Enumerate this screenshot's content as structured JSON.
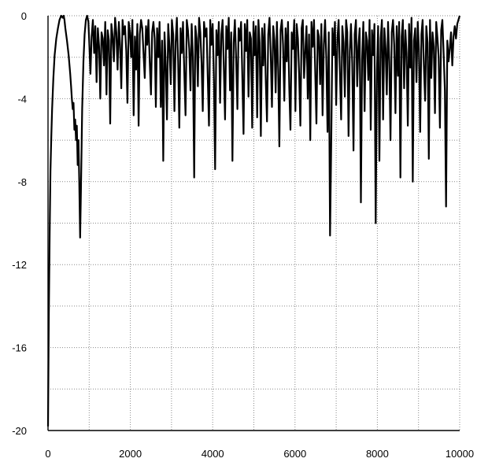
{
  "chart_data": {
    "type": "line",
    "title": "",
    "xlabel": "",
    "ylabel": "",
    "xlim": [
      0,
      10000
    ],
    "ylim": [
      -20,
      0
    ],
    "grid": true,
    "x_minor_step": 1000,
    "y_minor_step": 2,
    "x_ticks": [
      {
        "value": 0,
        "label": "0"
      },
      {
        "value": 2000,
        "label": "2000"
      },
      {
        "value": 4000,
        "label": "4000"
      },
      {
        "value": 6000,
        "label": "6000"
      },
      {
        "value": 8000,
        "label": "8000"
      },
      {
        "value": 10000,
        "label": "10000"
      }
    ],
    "y_ticks": [
      {
        "value": 0,
        "label": "0"
      },
      {
        "value": -4,
        "label": "-4"
      },
      {
        "value": -8,
        "label": "-8"
      },
      {
        "value": -12,
        "label": "-12"
      },
      {
        "value": -16,
        "label": "-16"
      },
      {
        "value": -20,
        "label": "-20"
      }
    ],
    "series": [
      {
        "color": "#000000",
        "x": [
          0,
          20,
          40,
          60,
          80,
          100,
          130,
          160,
          200,
          240,
          280,
          320,
          360,
          380,
          400,
          420,
          460,
          500,
          540,
          560,
          580,
          600,
          620,
          640,
          660,
          680,
          700,
          720,
          740,
          760,
          780,
          800,
          830,
          860,
          890,
          920,
          950,
          980,
          1000,
          1030,
          1060,
          1090,
          1120,
          1150,
          1180,
          1210,
          1240,
          1270,
          1300,
          1330,
          1360,
          1390,
          1420,
          1450,
          1480,
          1510,
          1540,
          1570,
          1600,
          1630,
          1660,
          1690,
          1720,
          1750,
          1780,
          1810,
          1840,
          1870,
          1900,
          1930,
          1960,
          1990,
          2020,
          2050,
          2080,
          2110,
          2140,
          2170,
          2200,
          2230,
          2260,
          2290,
          2320,
          2350,
          2380,
          2410,
          2440,
          2470,
          2500,
          2530,
          2560,
          2590,
          2620,
          2650,
          2680,
          2710,
          2740,
          2770,
          2800,
          2830,
          2860,
          2890,
          2920,
          2950,
          2980,
          3010,
          3040,
          3070,
          3100,
          3130,
          3160,
          3190,
          3220,
          3250,
          3280,
          3310,
          3340,
          3370,
          3400,
          3430,
          3460,
          3490,
          3520,
          3550,
          3580,
          3610,
          3640,
          3670,
          3700,
          3730,
          3760,
          3790,
          3820,
          3850,
          3880,
          3910,
          3940,
          3970,
          4000,
          4030,
          4060,
          4090,
          4120,
          4150,
          4180,
          4210,
          4240,
          4270,
          4300,
          4330,
          4360,
          4390,
          4420,
          4450,
          4480,
          4510,
          4540,
          4570,
          4600,
          4630,
          4660,
          4690,
          4720,
          4750,
          4780,
          4810,
          4840,
          4870,
          4900,
          4930,
          4960,
          4990,
          5020,
          5050,
          5080,
          5110,
          5140,
          5170,
          5200,
          5230,
          5260,
          5290,
          5320,
          5350,
          5380,
          5410,
          5440,
          5470,
          5500,
          5530,
          5560,
          5590,
          5620,
          5650,
          5680,
          5710,
          5740,
          5770,
          5800,
          5830,
          5860,
          5890,
          5920,
          5950,
          5980,
          6010,
          6040,
          6070,
          6100,
          6130,
          6160,
          6190,
          6220,
          6250,
          6280,
          6310,
          6340,
          6370,
          6400,
          6430,
          6460,
          6490,
          6520,
          6550,
          6580,
          6610,
          6640,
          6670,
          6700,
          6730,
          6760,
          6790,
          6820,
          6850,
          6880,
          6910,
          6940,
          6970,
          7000,
          7030,
          7060,
          7090,
          7120,
          7150,
          7180,
          7210,
          7240,
          7270,
          7300,
          7330,
          7360,
          7390,
          7420,
          7450,
          7480,
          7510,
          7540,
          7570,
          7600,
          7630,
          7660,
          7690,
          7720,
          7750,
          7780,
          7810,
          7840,
          7870,
          7900,
          7930,
          7960,
          7990,
          8020,
          8050,
          8080,
          8110,
          8140,
          8170,
          8200,
          8230,
          8260,
          8290,
          8320,
          8350,
          8380,
          8410,
          8440,
          8470,
          8500,
          8530,
          8560,
          8590,
          8620,
          8650,
          8680,
          8710,
          8740,
          8770,
          8800,
          8830,
          8860,
          8890,
          8920,
          8950,
          8980,
          9010,
          9040,
          9070,
          9100,
          9130,
          9160,
          9190,
          9220,
          9250,
          9280,
          9310,
          9340,
          9370,
          9400,
          9430,
          9460,
          9490,
          9520,
          9550,
          9580,
          9610,
          9640,
          9670,
          9700,
          9730,
          9760,
          9790,
          9820,
          9850,
          9880,
          9910,
          9940,
          9970,
          10000
        ],
        "y": [
          -19.8,
          -14.5,
          -10.5,
          -7.5,
          -5.8,
          -4.5,
          -3.0,
          -1.9,
          -1.1,
          -0.6,
          -0.2,
          0.0,
          -0.1,
          0.0,
          -0.2,
          -0.6,
          -1.2,
          -1.9,
          -2.8,
          -3.4,
          -4.0,
          -4.5,
          -4.2,
          -5.5,
          -5.0,
          -6.0,
          -5.3,
          -7.2,
          -6.0,
          -8.0,
          -10.7,
          -8.5,
          -4.5,
          -2.2,
          -0.9,
          -0.2,
          0.0,
          -0.3,
          -1.2,
          -2.8,
          -1.0,
          -0.2,
          -1.8,
          -0.5,
          -3.2,
          -0.6,
          -1.5,
          -4.0,
          -0.8,
          -1.1,
          -2.4,
          -0.3,
          -3.8,
          -0.7,
          -1.2,
          -5.2,
          -0.4,
          -1.0,
          -2.2,
          -0.1,
          -0.8,
          -2.6,
          -0.3,
          -1.4,
          -3.5,
          -0.2,
          -0.9,
          -0.5,
          -1.7,
          -4.2,
          -0.3,
          -0.8,
          -2.0,
          -0.2,
          -4.8,
          -1.0,
          -2.6,
          -0.4,
          -5.3,
          -0.9,
          -0.2,
          -0.6,
          -1.8,
          -3.0,
          -0.5,
          -1.4,
          -0.2,
          -2.2,
          -3.8,
          -0.8,
          -0.3,
          -1.1,
          -4.4,
          -0.6,
          -2.0,
          -0.3,
          -4.4,
          -1.2,
          -7.0,
          -0.8,
          -2.4,
          -5.0,
          -0.4,
          -1.5,
          -3.3,
          -0.2,
          -0.9,
          -4.6,
          -1.3,
          -0.1,
          -2.2,
          -5.4,
          -0.6,
          -1.8,
          -0.3,
          -2.7,
          -4.8,
          -0.2,
          -0.7,
          -1.6,
          -3.6,
          -0.4,
          -2.0,
          -7.8,
          -0.5,
          -1.1,
          -3.4,
          -0.1,
          -0.8,
          -2.3,
          -4.6,
          -0.3,
          -1.0,
          -0.6,
          -2.9,
          -5.3,
          -0.2,
          -1.4,
          -0.4,
          -3.1,
          -7.4,
          -0.7,
          -1.9,
          -0.3,
          -4.2,
          -0.9,
          -0.2,
          -2.4,
          -5.0,
          -0.5,
          -1.6,
          -0.1,
          -3.6,
          -0.8,
          -7.0,
          -1.3,
          -0.2,
          -2.1,
          -4.5,
          -0.6,
          -1.2,
          -0.3,
          -3.0,
          -5.7,
          -0.4,
          -1.7,
          -0.2,
          -3.9,
          -0.8,
          -1.1,
          -5.4,
          -0.3,
          -1.9,
          -0.5,
          -4.9,
          -0.2,
          -1.3,
          -5.8,
          -0.6,
          -2.4,
          -0.4,
          -3.2,
          -5.1,
          -0.9,
          -0.1,
          -1.8,
          -4.4,
          -0.5,
          -1.2,
          -3.7,
          -0.3,
          -2.6,
          -6.3,
          -0.7,
          -0.2,
          -1.4,
          -4.1,
          -0.6,
          -2.2,
          -0.3,
          -3.5,
          -5.5,
          -0.8,
          -1.6,
          -0.2,
          -4.6,
          -0.4,
          -1.1,
          -2.8,
          -5.3,
          -0.6,
          -0.2,
          -3.0,
          -1.7,
          -0.5,
          -4.0,
          -0.9,
          -6.0,
          -0.3,
          -1.5,
          -0.2,
          -2.6,
          -5.2,
          -0.7,
          -1.0,
          -3.3,
          -0.4,
          -4.8,
          -1.4,
          -0.2,
          -2.0,
          -5.6,
          -0.8,
          -10.6,
          -6.2,
          -0.6,
          -1.9,
          -0.3,
          -4.3,
          -1.1,
          -0.2,
          -2.7,
          -5.0,
          -0.5,
          -1.3,
          -3.9,
          -0.2,
          -0.8,
          -5.8,
          -1.7,
          -0.4,
          -2.3,
          -6.5,
          -0.9,
          -0.2,
          -3.4,
          -1.5,
          -0.6,
          -9.0,
          -2.1,
          -0.3,
          -4.6,
          -0.8,
          -1.2,
          -3.1,
          -0.2,
          -5.5,
          -0.7,
          -1.9,
          -0.4,
          -10.0,
          -2.6,
          -0.5,
          -7.0,
          -1.1,
          -0.2,
          -5.0,
          -0.6,
          -1.6,
          -3.8,
          -0.3,
          -2.2,
          -6.0,
          -0.8,
          -0.2,
          -1.4,
          -4.7,
          -0.5,
          -2.9,
          -0.3,
          -7.8,
          -1.0,
          -0.2,
          -3.5,
          -0.7,
          -1.8,
          -5.3,
          -0.4,
          -2.5,
          -0.1,
          -8.0,
          -1.2,
          -0.6,
          -3.2,
          -0.3,
          -1.6,
          -5.6,
          -0.9,
          -0.2,
          -2.4,
          -4.1,
          -0.5,
          -1.3,
          -6.9,
          -0.2,
          -3.0,
          -0.8,
          -1.5,
          -4.7,
          -0.3,
          -1.1,
          -2.0,
          -5.4,
          -0.7,
          -0.2,
          -1.8,
          -3.6,
          -9.2,
          -1.2,
          -2.2,
          -1.6,
          -0.8,
          -2.4,
          -1.0,
          -0.5,
          -1.1,
          -0.4,
          -0.2,
          0.0
        ]
      }
    ]
  }
}
